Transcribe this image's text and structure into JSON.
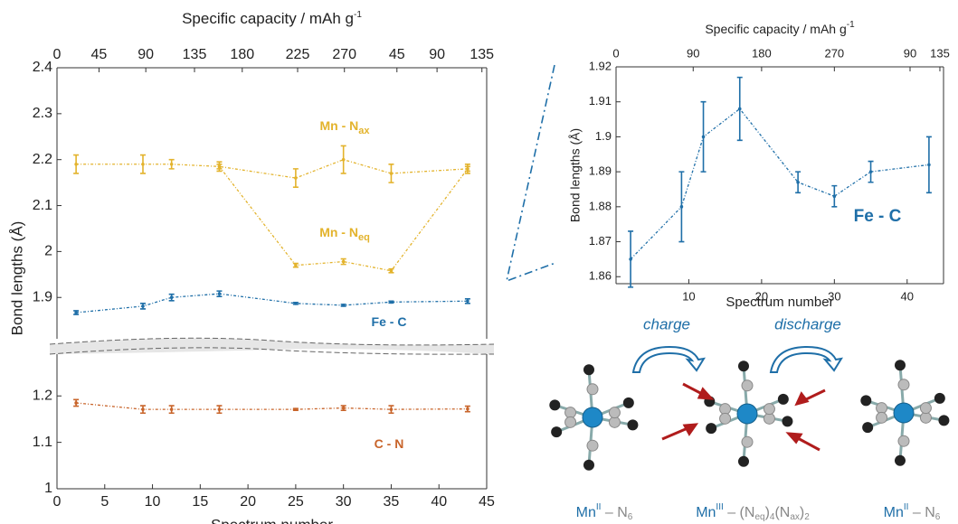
{
  "chart_data": [
    {
      "type": "line",
      "top_xlabel": "Specific capacity / mAh g",
      "top_xlabel_sup": "-1",
      "ylabel": "Bond lengths (Å)",
      "xlim": [
        0,
        45
      ],
      "top_xticks": [
        {
          "value": 0,
          "label": "0"
        },
        {
          "value": 4.4,
          "label": "45"
        },
        {
          "value": 9.3,
          "label": "90"
        },
        {
          "value": 14.4,
          "label": "135"
        },
        {
          "value": 19.4,
          "label": "180"
        },
        {
          "value": 25.2,
          "label": "225"
        },
        {
          "value": 30.1,
          "label": "270"
        },
        {
          "value": 35.6,
          "label": "45"
        },
        {
          "value": 39.8,
          "label": "90"
        },
        {
          "value": 44.5,
          "label": "135"
        }
      ],
      "ylim": [
        1.81,
        2.4
      ],
      "yticks": [
        1.9,
        2,
        2.1,
        2.2,
        2.3,
        2.4
      ],
      "x": [
        2,
        9,
        12,
        17,
        25,
        30,
        35,
        43
      ],
      "series": [
        {
          "name": "Mn - N",
          "name_sub": "ax",
          "color": "#e3b32c",
          "values": [
            2.19,
            2.19,
            2.19,
            2.185,
            2.16,
            2.2,
            2.17,
            2.18
          ],
          "errors": [
            0.02,
            0.02,
            0.01,
            0.01,
            0.02,
            0.03,
            0.02,
            0.01
          ]
        },
        {
          "name": "Mn - N",
          "name_sub": "eq",
          "color": "#e3b32c",
          "values": [
            null,
            null,
            null,
            2.185,
            1.97,
            1.978,
            1.958,
            2.18
          ],
          "errors": [
            null,
            null,
            null,
            0.005,
            0.004,
            0.006,
            0.004,
            0.005
          ]
        },
        {
          "name": "Fe - C",
          "color": "#1f6fa8",
          "values": [
            1.867,
            1.881,
            1.9,
            1.908,
            1.887,
            1.883,
            1.89,
            1.892
          ],
          "errors": [
            0.004,
            0.006,
            0.007,
            0.006,
            0.002,
            0.002,
            0.002,
            0.005
          ]
        }
      ]
    },
    {
      "type": "line",
      "xlabel": "Spectrum number",
      "xlim": [
        0,
        45
      ],
      "xticks": [
        0,
        5,
        10,
        15,
        20,
        25,
        30,
        35,
        40,
        45
      ],
      "ylim": [
        1,
        1.29
      ],
      "yticks": [
        1,
        1.1,
        1.2
      ],
      "x": [
        2,
        9,
        12,
        17,
        25,
        30,
        35,
        43
      ],
      "series": [
        {
          "name": "C - N",
          "color": "#c8642a",
          "values": [
            1.185,
            1.171,
            1.171,
            1.171,
            1.171,
            1.174,
            1.171,
            1.172
          ],
          "errors": [
            0.007,
            0.008,
            0.008,
            0.008,
            0.002,
            0.005,
            0.008,
            0.006
          ]
        }
      ]
    },
    {
      "type": "line",
      "top_xlabel": "Specific capacity / mAh g",
      "top_xlabel_sup": "-1",
      "xlabel": "Spectrum number",
      "ylabel": "Bond lengths (Å)",
      "xlim": [
        0,
        45
      ],
      "xticks": [
        10,
        20,
        30,
        40
      ],
      "top_xticks": [
        {
          "value": 0,
          "label": "0"
        },
        {
          "value": 10.6,
          "label": "90"
        },
        {
          "value": 20,
          "label": "180"
        },
        {
          "value": 30,
          "label": "270"
        },
        {
          "value": 40.4,
          "label": "90"
        },
        {
          "value": 44.5,
          "label": "135"
        }
      ],
      "ylim": [
        1.858,
        1.92
      ],
      "yticks": [
        1.86,
        1.87,
        1.88,
        1.89,
        1.9,
        1.91,
        1.92
      ],
      "x": [
        2,
        9,
        12,
        17,
        25,
        30,
        35,
        43
      ],
      "series": [
        {
          "name": "Fe - C",
          "color": "#1f6fa8",
          "values": [
            1.865,
            1.88,
            1.9,
            1.908,
            1.887,
            1.883,
            1.89,
            1.892
          ],
          "errors": [
            0.008,
            0.01,
            0.01,
            0.009,
            0.003,
            0.003,
            0.003,
            0.008
          ]
        }
      ]
    }
  ],
  "scheme": {
    "arrows": [
      "charge",
      "discharge"
    ],
    "labels": [
      [
        "Mn",
        "II",
        " – N",
        "6"
      ],
      [
        "Mn",
        "III",
        " – (N",
        "eq",
        ")",
        "4",
        "(N",
        "ax",
        ")",
        "2"
      ],
      [
        "Mn",
        "II",
        " – N",
        "6"
      ]
    ]
  }
}
